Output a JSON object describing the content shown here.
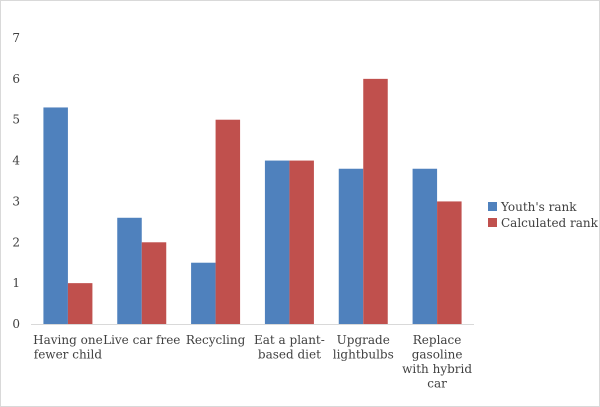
{
  "chart_data": {
    "type": "bar",
    "categories": [
      [
        "Having one",
        "fewer child"
      ],
      [
        "Live car free"
      ],
      [
        "Recycling"
      ],
      [
        "Eat a plant-",
        "based diet"
      ],
      [
        "Upgrade",
        "lightbulbs"
      ],
      [
        "Replace",
        "gasoline",
        "with hybrid",
        "car"
      ]
    ],
    "series": [
      {
        "name": "Youth's rank",
        "color": "#4f81bd",
        "values": [
          5.3,
          2.6,
          1.5,
          4.0,
          3.8,
          3.8
        ]
      },
      {
        "name": "Calculated rank",
        "color": "#c0504d",
        "values": [
          1.0,
          2.0,
          5.0,
          4.0,
          6.0,
          3.0
        ]
      }
    ],
    "ylim": [
      0,
      7
    ],
    "yticks": [
      "0",
      "1",
      "2",
      "3",
      "4",
      "5",
      "6",
      "7"
    ],
    "grid": false,
    "legend_position": "right",
    "title": "",
    "xlabel": "",
    "ylabel": ""
  }
}
